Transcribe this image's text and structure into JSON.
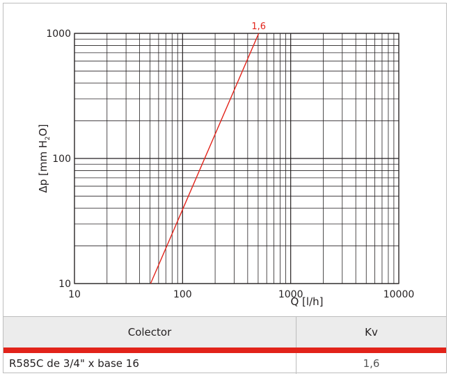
{
  "chart_data": {
    "type": "line",
    "xscale": "log",
    "yscale": "log",
    "xlim": [
      10,
      10000
    ],
    "ylim": [
      10,
      1000
    ],
    "xticks": [
      10,
      100,
      1000,
      10000
    ],
    "yticks": [
      10,
      100,
      1000
    ],
    "xtick_labels": [
      "10",
      "100",
      "1000",
      "10000"
    ],
    "ytick_labels": [
      "10",
      "100",
      "1000"
    ],
    "xlabel": "Q [l/h]",
    "ylabel": "Δp [mm H",
    "ylabel_sub": "2",
    "ylabel_end": "O]",
    "grid": true,
    "series": [
      {
        "name": "1,6",
        "color": "#e2231a",
        "x": [
          50.6,
          506
        ],
        "y": [
          10,
          1000
        ]
      }
    ]
  },
  "table": {
    "headers": [
      "Colector",
      "Kv"
    ],
    "rows": [
      [
        "R585C de 3/4\" x base 16",
        "1,6"
      ]
    ],
    "accent_color": "#e2231a"
  }
}
